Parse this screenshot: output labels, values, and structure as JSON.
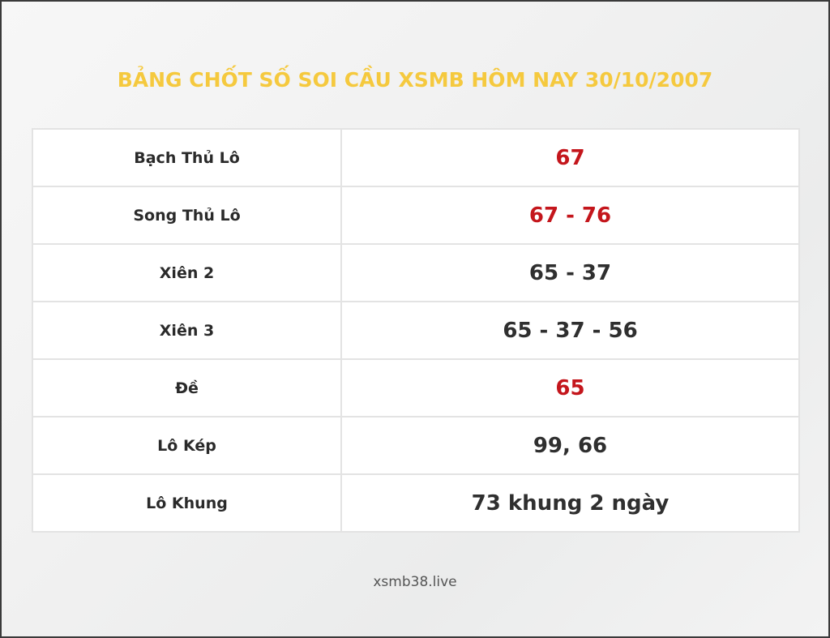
{
  "title": "BẢNG CHỐT SỐ SOI CẦU XSMB HÔM NAY 30/10/2007",
  "colors": {
    "title": "#f5c93e",
    "highlight": "#c4161c",
    "text": "#2f2f2f"
  },
  "rows": [
    {
      "label": "Bạch Thủ Lô",
      "value": "67",
      "highlight": true
    },
    {
      "label": "Song Thủ Lô",
      "value": "67 - 76",
      "highlight": true
    },
    {
      "label": "Xiên 2",
      "value": "65 - 37",
      "highlight": false
    },
    {
      "label": "Xiên 3",
      "value": "65 - 37 - 56",
      "highlight": false
    },
    {
      "label": "Đề",
      "value": "65",
      "highlight": true
    },
    {
      "label": "Lô Kép",
      "value": "99, 66",
      "highlight": false
    },
    {
      "label": "Lô Khung",
      "value": "73 khung 2 ngày",
      "highlight": false
    }
  ],
  "footer": "xsmb38.live"
}
